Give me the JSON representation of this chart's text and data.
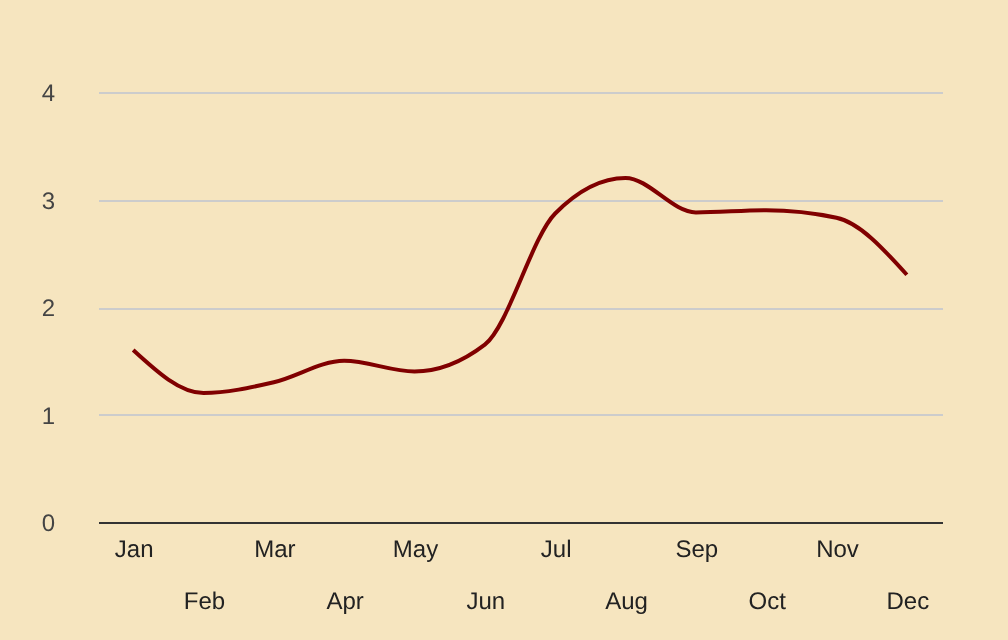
{
  "chart_data": {
    "type": "line",
    "categories": [
      "Jan",
      "Feb",
      "Mar",
      "Apr",
      "May",
      "Jun",
      "Jul",
      "Aug",
      "Sep",
      "Oct",
      "Nov",
      "Dec"
    ],
    "values": [
      1.6,
      1.2,
      1.3,
      1.5,
      1.4,
      1.65,
      2.87,
      3.2,
      2.88,
      2.9,
      2.83,
      2.3
    ],
    "color": "#800000",
    "ylim": [
      0,
      4
    ],
    "yticks": [
      0,
      1,
      2,
      3,
      4
    ],
    "grid": "y"
  }
}
